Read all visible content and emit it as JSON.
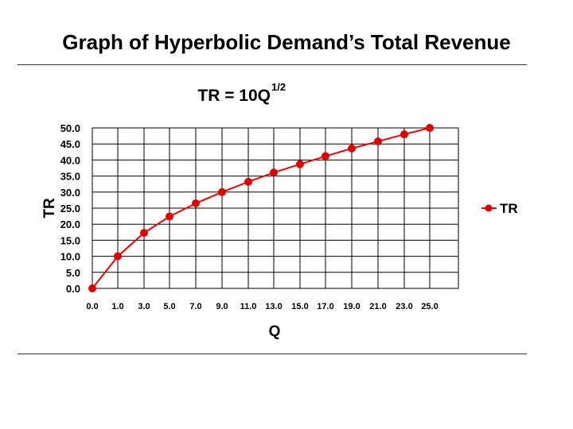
{
  "slide": {
    "title": "Graph of Hyperbolic Demand’s Total Revenue"
  },
  "chart_data": {
    "type": "line",
    "title_base": "TR = 10Q",
    "title_superscript": "1/2",
    "xlabel": "Q",
    "ylabel": "TR",
    "ylim": [
      0,
      50
    ],
    "y_ticks": [
      "0.0",
      "5.0",
      "10.0",
      "15.0",
      "20.0",
      "25.0",
      "30.0",
      "35.0",
      "40.0",
      "45.0",
      "50.0"
    ],
    "categories": [
      "0.0",
      "1.0",
      "3.0",
      "5.0",
      "7.0",
      "9.0",
      "11.0",
      "13.0",
      "15.0",
      "17.0",
      "19.0",
      "21.0",
      "23.0",
      "25.0"
    ],
    "series": [
      {
        "name": "TR",
        "color": "#ff0000",
        "marker_color": "#e00000",
        "values": [
          0.0,
          10.0,
          17.3,
          22.4,
          26.5,
          30.0,
          33.2,
          36.1,
          38.7,
          41.2,
          43.6,
          45.8,
          48.0,
          50.0
        ]
      }
    ],
    "grid": true,
    "legend_position": "right"
  }
}
